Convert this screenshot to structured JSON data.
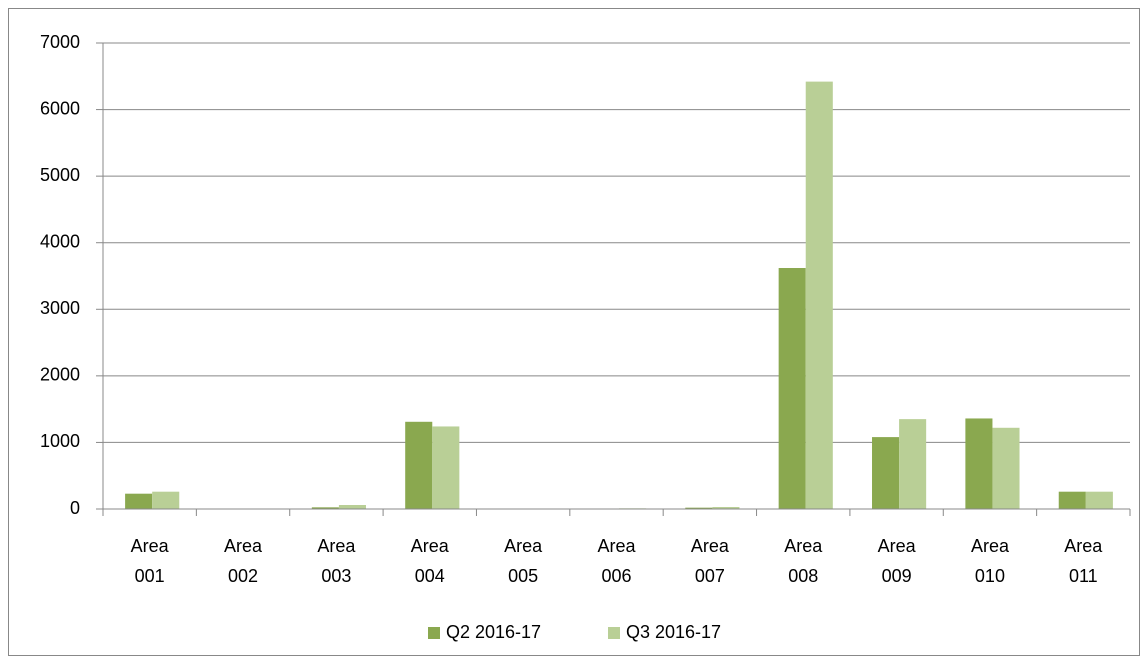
{
  "chart_data": {
    "type": "bar",
    "categories": [
      "Area 001",
      "Area 002",
      "Area 003",
      "Area 004",
      "Area 005",
      "Area 006",
      "Area 007",
      "Area 008",
      "Area 009",
      "Area 010",
      "Area 011"
    ],
    "series": [
      {
        "name": "Q2 2016-17",
        "color": "#8aa84f",
        "values": [
          230,
          5,
          25,
          1310,
          0,
          5,
          20,
          3620,
          1080,
          1360,
          260
        ]
      },
      {
        "name": "Q3 2016-17",
        "color": "#b9cf96",
        "values": [
          260,
          5,
          60,
          1240,
          0,
          10,
          30,
          6420,
          1350,
          1220,
          260
        ]
      }
    ],
    "ylim": [
      0,
      7000
    ],
    "yticks": [
      0,
      1000,
      2000,
      3000,
      4000,
      5000,
      6000,
      7000
    ],
    "grid": true,
    "legend": "bottom"
  }
}
